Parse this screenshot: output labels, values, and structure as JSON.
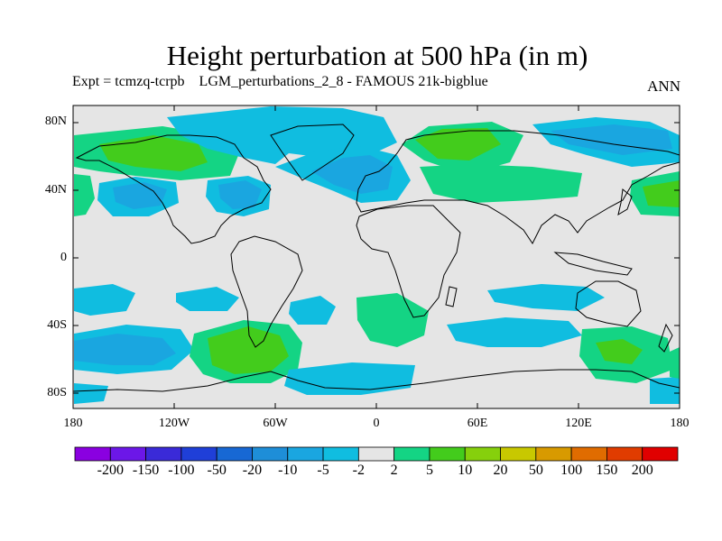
{
  "title": "Height perturbation at 500 hPa (in m)",
  "subtitle": "Expt = tcmzq-tcrpb    LGM_perturbations_2_8 - FAMOUS 21k-bigblue",
  "season": "ANN",
  "map": {
    "lat_labels": [
      "80N",
      "40N",
      "0",
      "40S",
      "80S"
    ],
    "lon_labels": [
      "180",
      "120W",
      "60W",
      "0",
      "60E",
      "120E",
      "180"
    ]
  },
  "colorbar": {
    "labels": [
      "-200",
      "-150",
      "-100",
      "-50",
      "-20",
      "-10",
      "-5",
      "-2",
      "2",
      "5",
      "10",
      "20",
      "50",
      "100",
      "150",
      "200"
    ],
    "colors": [
      "#8a00e0",
      "#6c17e8",
      "#3a2ad8",
      "#1f3fd8",
      "#1768d4",
      "#1e8ed8",
      "#1aa6e0",
      "#10bde0",
      "#e5e5e5",
      "#14d484",
      "#43cc1c",
      "#86d00c",
      "#c8c800",
      "#d89a00",
      "#e06c00",
      "#e03c00",
      "#e00000"
    ]
  },
  "colors": {
    "neutral": "#e5e5e5",
    "neg_weak": "#10bde0",
    "neg_mid": "#1aa6e0",
    "neg_strong": "#1e8ed8",
    "pos_weak": "#14d484",
    "pos_mid": "#43cc1c"
  }
}
